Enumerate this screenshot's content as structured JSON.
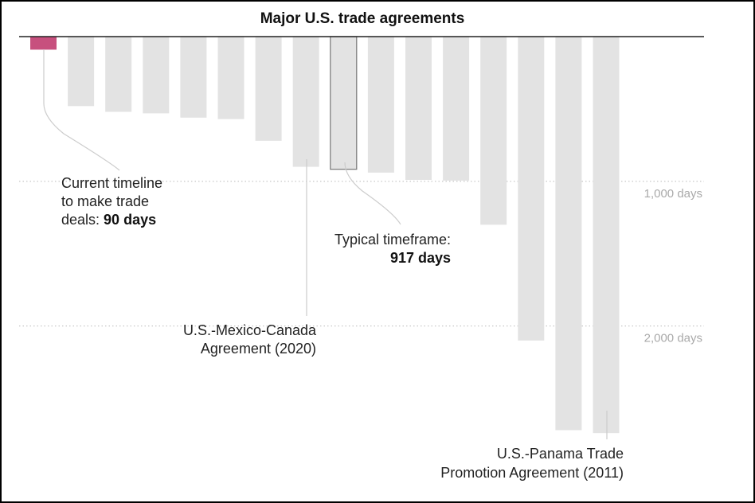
{
  "chart_data": {
    "type": "bar",
    "title": "Major U.S. trade agreements",
    "orientation": "downward",
    "unit": "days",
    "ylim": [
      0,
      2750
    ],
    "yticks": [
      {
        "value": 1000,
        "label": "1,000 days"
      },
      {
        "value": 2000,
        "label": "2,000 days"
      }
    ],
    "values": [
      90,
      480,
      520,
      530,
      560,
      570,
      720,
      900,
      917,
      940,
      990,
      995,
      1300,
      2100,
      2720,
      2740
    ],
    "highlight_color": "#c7507e",
    "bar_color": "#e3e3e3",
    "annotations": {
      "current": {
        "lines": [
          "Current timeline",
          "to make trade"
        ],
        "prefix": "deals: ",
        "bold": "90 days"
      },
      "typical": {
        "line": "Typical timeframe:",
        "bold": "917 days"
      },
      "usmca": {
        "lines": [
          "U.S.-Mexico-Canada",
          "Agreement (2020)"
        ]
      },
      "panama": {
        "lines": [
          "U.S.-Panama Trade",
          "Promotion Agreement (2011)"
        ]
      }
    }
  }
}
